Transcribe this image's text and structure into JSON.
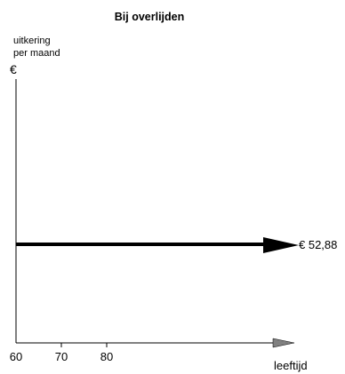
{
  "chart_data": {
    "type": "line",
    "title": "Bij overlijden",
    "ylabel_line1": "uitkering",
    "ylabel_line2": "per maand",
    "ylabel_currency": "€",
    "xlabel": "leeftijd",
    "xticks": [
      "60",
      "70",
      "80"
    ],
    "x_axis_start": 60,
    "series": [
      {
        "x": [
          60,
          120
        ],
        "y": [
          52.88,
          52.88
        ],
        "label": "€ 52,88"
      }
    ],
    "ylim": [
      0,
      85
    ],
    "grid": false,
    "legend": false,
    "colors": {
      "line": "#000000",
      "axis": "#000000",
      "arrowhead": "#808080"
    }
  }
}
